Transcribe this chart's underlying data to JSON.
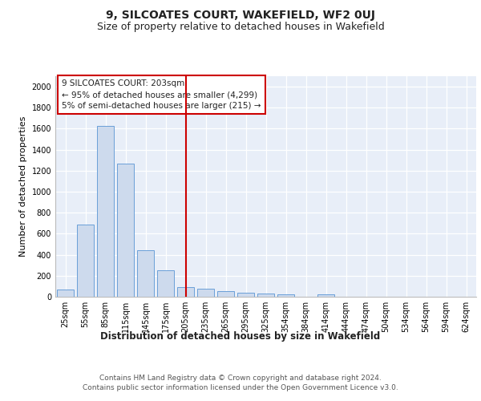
{
  "title": "9, SILCOATES COURT, WAKEFIELD, WF2 0UJ",
  "subtitle": "Size of property relative to detached houses in Wakefield",
  "xlabel": "Distribution of detached houses by size in Wakefield",
  "ylabel": "Number of detached properties",
  "categories": [
    "25sqm",
    "55sqm",
    "85sqm",
    "115sqm",
    "145sqm",
    "175sqm",
    "205sqm",
    "235sqm",
    "265sqm",
    "295sqm",
    "325sqm",
    "354sqm",
    "384sqm",
    "414sqm",
    "444sqm",
    "474sqm",
    "504sqm",
    "534sqm",
    "564sqm",
    "594sqm",
    "624sqm"
  ],
  "values": [
    70,
    690,
    1630,
    1270,
    440,
    250,
    90,
    80,
    50,
    35,
    30,
    20,
    0,
    20,
    0,
    0,
    0,
    0,
    0,
    0,
    0
  ],
  "bar_color": "#cddaed",
  "bar_edge_color": "#6a9fd8",
  "red_line_index": 6,
  "annotation_text": "9 SILCOATES COURT: 203sqm\n← 95% of detached houses are smaller (4,299)\n5% of semi-detached houses are larger (215) →",
  "annotation_box_color": "#ffffff",
  "annotation_box_edge": "#cc0000",
  "ylim": [
    0,
    2100
  ],
  "yticks": [
    0,
    200,
    400,
    600,
    800,
    1000,
    1200,
    1400,
    1600,
    1800,
    2000
  ],
  "background_color": "#e8eef8",
  "footer_text": "Contains HM Land Registry data © Crown copyright and database right 2024.\nContains public sector information licensed under the Open Government Licence v3.0.",
  "title_fontsize": 10,
  "subtitle_fontsize": 9,
  "xlabel_fontsize": 8.5,
  "ylabel_fontsize": 8,
  "tick_fontsize": 7,
  "annotation_fontsize": 7.5,
  "footer_fontsize": 6.5
}
